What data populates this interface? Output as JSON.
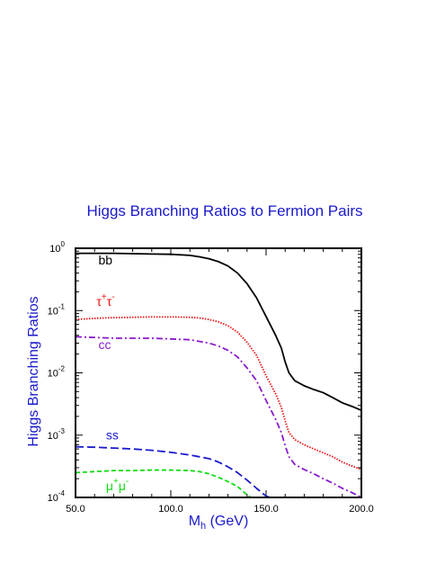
{
  "chart_data": {
    "type": "line",
    "title": "Higgs Branching Ratios to Fermion Pairs",
    "xlabel_main": "M",
    "xlabel_sub": "h",
    "xlabel_unit": " (GeV)",
    "ylabel": "Higgs Branching Ratios",
    "xlim": [
      50,
      200
    ],
    "ylim": [
      0.0001,
      1
    ],
    "yscale": "log",
    "x_ticks": [
      {
        "value": 50,
        "label": "50.0"
      },
      {
        "value": 100,
        "label": "100.0"
      },
      {
        "value": 150,
        "label": "150.0"
      },
      {
        "value": 200,
        "label": "200.0"
      }
    ],
    "y_ticks": [
      {
        "value": 1,
        "base": "10",
        "exp": "0"
      },
      {
        "value": 0.1,
        "base": "10",
        "exp": "-1"
      },
      {
        "value": 0.01,
        "base": "10",
        "exp": "-2"
      },
      {
        "value": 0.001,
        "base": "10",
        "exp": "-3"
      },
      {
        "value": 0.0001,
        "base": "10",
        "exp": "-4"
      }
    ],
    "series": [
      {
        "label": "bb",
        "color": "#000000",
        "dash": "",
        "label_x": 62,
        "label_y": 0.55,
        "x": [
          50,
          60,
          70,
          80,
          90,
          100,
          110,
          115,
          120,
          125,
          130,
          135,
          140,
          145,
          150,
          155,
          158,
          160,
          162,
          165,
          170,
          175,
          180,
          185,
          190,
          195,
          200
        ],
        "y": [
          0.83,
          0.83,
          0.83,
          0.82,
          0.81,
          0.8,
          0.77,
          0.73,
          0.68,
          0.61,
          0.52,
          0.4,
          0.27,
          0.16,
          0.08,
          0.04,
          0.025,
          0.015,
          0.01,
          0.0075,
          0.0062,
          0.0054,
          0.0048,
          0.004,
          0.0033,
          0.0029,
          0.0025
        ]
      },
      {
        "label": "τ",
        "label_sup": "+",
        "label2": "τ",
        "label2_sup": "-",
        "color": "#ee1111",
        "dash": "1.5,1.5",
        "label_x": 61,
        "label_y": 0.12,
        "x": [
          50,
          60,
          70,
          80,
          90,
          100,
          110,
          115,
          120,
          125,
          130,
          135,
          140,
          145,
          150,
          155,
          158,
          160,
          162,
          165,
          170,
          175,
          180,
          185,
          190,
          195,
          200
        ],
        "y": [
          0.072,
          0.075,
          0.077,
          0.078,
          0.079,
          0.079,
          0.078,
          0.076,
          0.072,
          0.066,
          0.057,
          0.045,
          0.031,
          0.019,
          0.009,
          0.0046,
          0.0028,
          0.0017,
          0.0011,
          0.00085,
          0.0007,
          0.0006,
          0.00052,
          0.00045,
          0.00037,
          0.00032,
          0.00028
        ]
      },
      {
        "label": "cc",
        "color": "#8a1acc",
        "dash": "7,3,2,3",
        "label_x": 62,
        "label_y": 0.024,
        "x": [
          50,
          60,
          70,
          80,
          90,
          100,
          110,
          115,
          120,
          125,
          130,
          135,
          140,
          145,
          150,
          155,
          158,
          160,
          162,
          165,
          170,
          175,
          180,
          185,
          190,
          195,
          200
        ],
        "y": [
          0.038,
          0.037,
          0.036,
          0.036,
          0.036,
          0.035,
          0.034,
          0.032,
          0.03,
          0.027,
          0.023,
          0.018,
          0.012,
          0.0075,
          0.0036,
          0.0018,
          0.0011,
          0.00068,
          0.00045,
          0.00034,
          0.00028,
          0.00024,
          0.0002,
          0.00017,
          0.00014,
          0.00012,
          0.0001
        ]
      },
      {
        "label": "ss",
        "color": "#1a1acc",
        "dash": "9,4",
        "label_x": 66,
        "label_y": 0.00085,
        "x": [
          50,
          60,
          70,
          80,
          90,
          100,
          110,
          120,
          125,
          130,
          135,
          140,
          145,
          150,
          152
        ],
        "y": [
          0.00065,
          0.00064,
          0.00062,
          0.0006,
          0.00057,
          0.00053,
          0.00048,
          0.00042,
          0.00037,
          0.00031,
          0.00025,
          0.00019,
          0.00014,
          0.000105,
          0.0001
        ]
      },
      {
        "label": "μ",
        "label_sup": "+",
        "label2": "μ",
        "label2_sup": "-",
        "color": "#11dd11",
        "dash": "5,3",
        "label_x": 66,
        "label_y": 0.00013,
        "x": [
          50,
          60,
          70,
          80,
          90,
          100,
          110,
          115,
          120,
          125,
          130,
          135,
          140,
          142
        ],
        "y": [
          0.00025,
          0.00026,
          0.00027,
          0.00027,
          0.000275,
          0.000275,
          0.00027,
          0.00026,
          0.00024,
          0.00021,
          0.00018,
          0.00015,
          0.00011,
          0.0001
        ]
      }
    ]
  }
}
